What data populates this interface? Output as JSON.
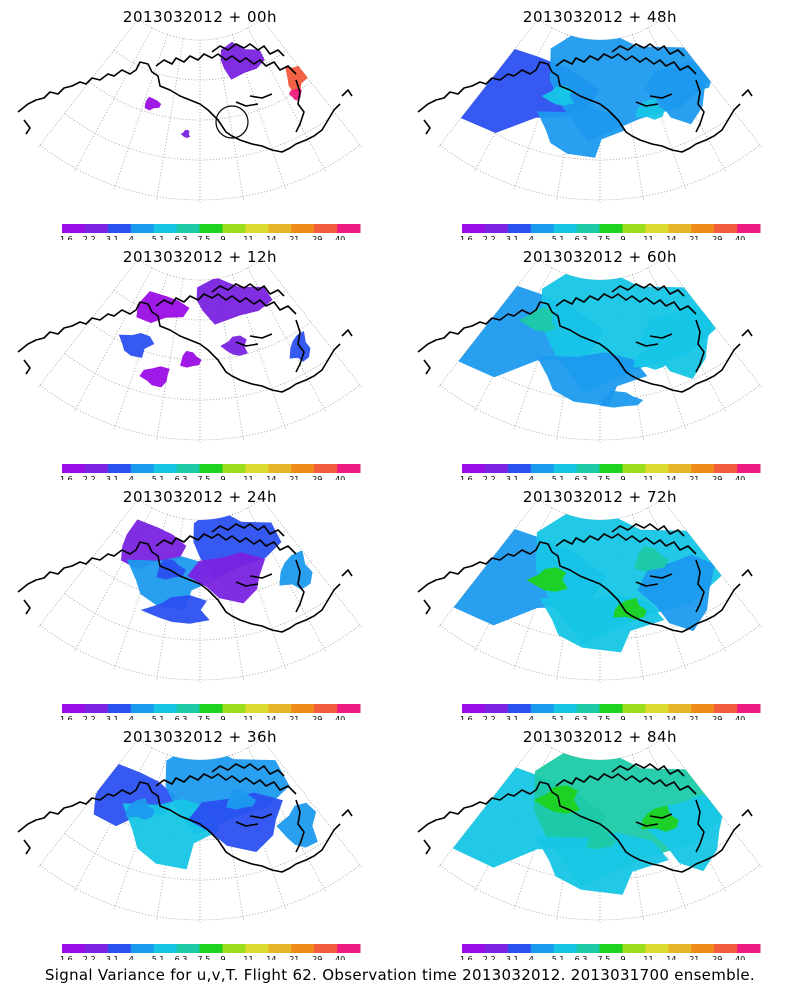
{
  "figure": {
    "caption": "Signal Variance for u,v,T. Flight 62. Observation time 2013032012. 2013031700 ensemble.",
    "colorbar": {
      "labels": [
        "1.6",
        "2.2",
        "3.1",
        "4",
        "5.1",
        "6.3",
        "7.5",
        "9",
        "11",
        "14",
        "21",
        "29",
        "40"
      ],
      "colors": [
        "#9a0de6",
        "#7a22e0",
        "#2a50f0",
        "#1c9aee",
        "#16c6e6",
        "#1ccaa6",
        "#1ed21e",
        "#9edc1e",
        "#dcdc30",
        "#e6b428",
        "#f08a1a",
        "#f25a3c",
        "#ee1c82"
      ]
    },
    "panels": [
      {
        "title": "2013032012 + 00h",
        "level": 0
      },
      {
        "title": "2013032012 + 12h",
        "level": 1
      },
      {
        "title": "2013032012 + 24h",
        "level": 2
      },
      {
        "title": "2013032012 + 36h",
        "level": 3
      },
      {
        "title": "2013032012 + 48h",
        "level": 4
      },
      {
        "title": "2013032012 + 60h",
        "level": 5
      },
      {
        "title": "2013032012 + 72h",
        "level": 6
      },
      {
        "title": "2013032012 + 84h",
        "level": 7
      }
    ]
  }
}
